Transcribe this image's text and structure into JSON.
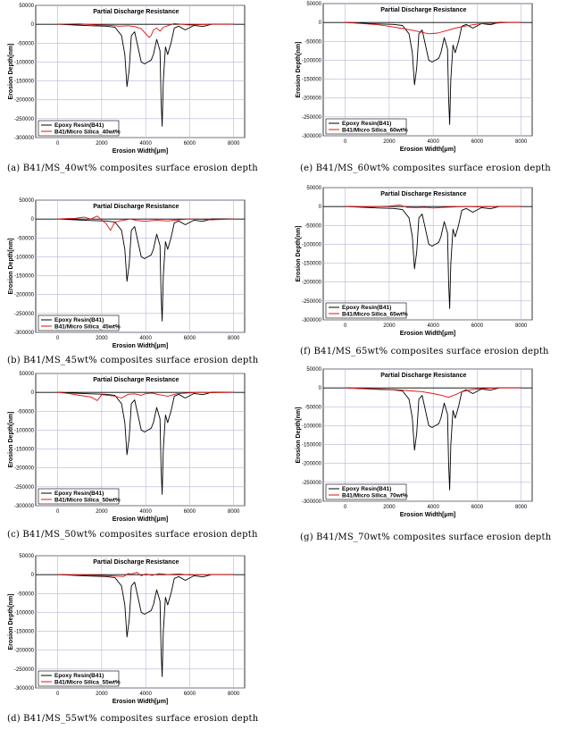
{
  "common": {
    "title": "Partial Discharge Resistance",
    "xlabel": "Erosion Width[μm]",
    "ylabel": "Erosion Depth[nm]",
    "xticks": [
      0,
      2000,
      4000,
      6000,
      8000
    ],
    "yticks": [
      50000,
      0,
      -50000,
      -100000,
      -150000,
      -200000,
      -250000,
      -300000
    ],
    "xlim": [
      -1000,
      8500
    ],
    "ylim": [
      -300000,
      50000
    ],
    "colors": {
      "epoxy": "#000000",
      "silica": "#e01010",
      "grid": "#b9b3d9",
      "zero": "#000000"
    },
    "legend_epoxy": "Epoxy Resin(B41)"
  },
  "chart_data": [
    {
      "id": "a",
      "type": "line",
      "legend_silica": "B41/Micro Silica_40wt%",
      "caption": "(a) B41/MS_40wt% composites surface erosion depth",
      "series": [
        {
          "name": "Epoxy Resin(B41)",
          "x": [
            0,
            800,
            1500,
            2200,
            2600,
            2900,
            3050,
            3150,
            3250,
            3350,
            3500,
            3650,
            3800,
            3950,
            4100,
            4250,
            4350,
            4500,
            4650,
            4700,
            4750,
            4800,
            4900,
            5000,
            5150,
            5300,
            5500,
            5800,
            6200,
            6600,
            7000,
            8000
          ],
          "y": [
            0,
            -2000,
            -4000,
            -5000,
            -8000,
            -30000,
            -80000,
            -165000,
            -120000,
            -30000,
            -20000,
            -60000,
            -100000,
            -105000,
            -100000,
            -95000,
            -80000,
            -40000,
            -70000,
            -200000,
            -270000,
            -150000,
            -60000,
            -80000,
            -50000,
            -10000,
            -5000,
            -15000,
            -3000,
            -6000,
            0,
            0
          ]
        },
        {
          "name": "B41/Micro Silica_40wt%",
          "x": [
            0,
            1000,
            1800,
            2400,
            2800,
            3200,
            3500,
            3800,
            4000,
            4150,
            4250,
            4350,
            4500,
            4650,
            4800,
            5000,
            5300,
            5600,
            6000,
            7000,
            8000
          ],
          "y": [
            0,
            1000,
            -2000,
            -3000,
            -5000,
            -4000,
            -6000,
            -12000,
            -25000,
            -35000,
            -30000,
            -15000,
            -10000,
            -18000,
            -8000,
            -4000,
            2000,
            0,
            -2000,
            0,
            0
          ]
        }
      ]
    },
    {
      "id": "b",
      "type": "line",
      "legend_silica": "B41/Micro Silica_45wt%",
      "caption": "(b) B41/MS_45wt% composites surface erosion depth",
      "series": [
        {
          "name": "Epoxy Resin(B41)",
          "x": [
            0,
            800,
            1500,
            2200,
            2600,
            2900,
            3050,
            3150,
            3250,
            3350,
            3500,
            3650,
            3800,
            3950,
            4100,
            4250,
            4350,
            4500,
            4650,
            4700,
            4750,
            4800,
            4900,
            5000,
            5150,
            5300,
            5500,
            5800,
            6200,
            6600,
            7000,
            8000
          ],
          "y": [
            0,
            -2000,
            -4000,
            -5000,
            -8000,
            -30000,
            -80000,
            -165000,
            -120000,
            -30000,
            -20000,
            -60000,
            -100000,
            -105000,
            -100000,
            -95000,
            -80000,
            -40000,
            -70000,
            -200000,
            -270000,
            -150000,
            -60000,
            -80000,
            -50000,
            -10000,
            -5000,
            -15000,
            -3000,
            -6000,
            0,
            0
          ]
        },
        {
          "name": "B41/Micro Silica_45wt%",
          "x": [
            0,
            800,
            1200,
            1500,
            1800,
            2000,
            2200,
            2400,
            2600,
            2800,
            3000,
            3300,
            3600,
            4000,
            4500,
            5000,
            5500,
            6000,
            7000,
            8000
          ],
          "y": [
            0,
            2000,
            5000,
            0,
            8000,
            -3000,
            -12000,
            -30000,
            -8000,
            -5000,
            -3000,
            0,
            -4000,
            -6000,
            -3000,
            -5000,
            -2000,
            0,
            -2000,
            0
          ]
        }
      ]
    },
    {
      "id": "c",
      "type": "line",
      "legend_silica": "B41/Micro Silica_50wt%",
      "caption": "(c) B41/MS_50wt% composites surface erosion depth",
      "series": [
        {
          "name": "Epoxy Resin(B41)",
          "x": [
            0,
            800,
            1500,
            2200,
            2600,
            2900,
            3050,
            3150,
            3250,
            3350,
            3500,
            3650,
            3800,
            3950,
            4100,
            4250,
            4350,
            4500,
            4650,
            4700,
            4750,
            4800,
            4900,
            5000,
            5150,
            5300,
            5500,
            5800,
            6200,
            6600,
            7000,
            8000
          ],
          "y": [
            0,
            -2000,
            -4000,
            -5000,
            -8000,
            -30000,
            -80000,
            -165000,
            -120000,
            -30000,
            -20000,
            -60000,
            -100000,
            -105000,
            -100000,
            -95000,
            -80000,
            -40000,
            -70000,
            -200000,
            -270000,
            -150000,
            -60000,
            -80000,
            -50000,
            -10000,
            -5000,
            -15000,
            -3000,
            -6000,
            0,
            0
          ]
        },
        {
          "name": "B41/Micro Silica_50wt%",
          "x": [
            0,
            500,
            1000,
            1500,
            1800,
            2000,
            2300,
            2600,
            2900,
            3200,
            3500,
            3800,
            4000,
            4300,
            4600,
            5000,
            5400,
            5800,
            6500,
            7000,
            8000
          ],
          "y": [
            0,
            -3000,
            -8000,
            -12000,
            -22000,
            -6000,
            -8000,
            -10000,
            -15000,
            -5000,
            -4000,
            -8000,
            -3000,
            -2000,
            -6000,
            -10000,
            -4000,
            -2000,
            0,
            -1000,
            0
          ]
        }
      ]
    },
    {
      "id": "d",
      "type": "line",
      "legend_silica": "B41/Micro Silica_55wt%",
      "caption": "(d) B41/MS_55wt% composites surface erosion depth",
      "series": [
        {
          "name": "Epoxy Resin(B41)",
          "x": [
            0,
            800,
            1500,
            2200,
            2600,
            2900,
            3050,
            3150,
            3250,
            3350,
            3500,
            3650,
            3800,
            3950,
            4100,
            4250,
            4350,
            4500,
            4650,
            4700,
            4750,
            4800,
            4900,
            5000,
            5150,
            5300,
            5500,
            5800,
            6200,
            6600,
            7000,
            8000
          ],
          "y": [
            0,
            -2000,
            -4000,
            -5000,
            -8000,
            -30000,
            -80000,
            -165000,
            -120000,
            -30000,
            -20000,
            -60000,
            -100000,
            -105000,
            -100000,
            -95000,
            -80000,
            -40000,
            -70000,
            -200000,
            -270000,
            -150000,
            -60000,
            -80000,
            -50000,
            -10000,
            -5000,
            -15000,
            -3000,
            -6000,
            0,
            0
          ]
        },
        {
          "name": "B41/Micro Silica_55wt%",
          "x": [
            0,
            1000,
            2000,
            2600,
            3000,
            3200,
            3400,
            3600,
            3800,
            4000,
            4300,
            4600,
            5000,
            5500,
            6000,
            7000,
            8000
          ],
          "y": [
            0,
            -1000,
            -2000,
            -4000,
            -5000,
            3000,
            2000,
            6000,
            -3000,
            2000,
            -2000,
            3000,
            0,
            2000,
            -1000,
            0,
            0
          ]
        }
      ]
    },
    {
      "id": "e",
      "type": "line",
      "legend_silica": "B41/Micro Silica_60wt%",
      "caption": "(e) B41/MS_60wt% composites surface erosion depth",
      "series": [
        {
          "name": "Epoxy Resin(B41)",
          "x": [
            0,
            800,
            1500,
            2200,
            2600,
            2900,
            3050,
            3150,
            3250,
            3350,
            3500,
            3650,
            3800,
            3950,
            4100,
            4250,
            4350,
            4500,
            4650,
            4700,
            4750,
            4800,
            4900,
            5000,
            5150,
            5300,
            5500,
            5800,
            6200,
            6600,
            7000,
            8000
          ],
          "y": [
            0,
            -2000,
            -4000,
            -5000,
            -8000,
            -30000,
            -80000,
            -165000,
            -120000,
            -30000,
            -20000,
            -60000,
            -100000,
            -105000,
            -100000,
            -95000,
            -80000,
            -40000,
            -70000,
            -200000,
            -270000,
            -150000,
            -60000,
            -80000,
            -50000,
            -10000,
            -5000,
            -15000,
            -3000,
            -6000,
            0,
            0
          ]
        },
        {
          "name": "B41/Micro Silica_60wt%",
          "x": [
            0,
            800,
            1500,
            2000,
            2500,
            3000,
            3400,
            3800,
            4200,
            4600,
            5000,
            5400,
            5800,
            6200,
            6800,
            7400,
            8000
          ],
          "y": [
            0,
            -3000,
            -6000,
            -10000,
            -15000,
            -20000,
            -25000,
            -30000,
            -28000,
            -22000,
            -15000,
            -10000,
            -6000,
            -3000,
            -2000,
            0,
            0
          ]
        }
      ]
    },
    {
      "id": "f",
      "type": "line",
      "legend_silica": "B41/Micro Silica_65wt%",
      "caption": "(f) B41/MS_65wt% composites surface erosion depth",
      "series": [
        {
          "name": "Epoxy Resin(B41)",
          "x": [
            0,
            800,
            1500,
            2200,
            2600,
            2900,
            3050,
            3150,
            3250,
            3350,
            3500,
            3650,
            3800,
            3950,
            4100,
            4250,
            4350,
            4500,
            4650,
            4700,
            4750,
            4800,
            4900,
            5000,
            5150,
            5300,
            5500,
            5800,
            6200,
            6600,
            7000,
            8000
          ],
          "y": [
            0,
            -2000,
            -4000,
            -5000,
            -8000,
            -30000,
            -80000,
            -165000,
            -120000,
            -30000,
            -20000,
            -60000,
            -100000,
            -105000,
            -100000,
            -95000,
            -80000,
            -40000,
            -70000,
            -200000,
            -270000,
            -150000,
            -60000,
            -80000,
            -50000,
            -10000,
            -5000,
            -15000,
            -3000,
            -6000,
            0,
            0
          ]
        },
        {
          "name": "B41/Micro Silica_65wt%",
          "x": [
            0,
            1000,
            2000,
            2500,
            2800,
            3200,
            3600,
            4000,
            4500,
            5000,
            5500,
            6000,
            7000,
            8000
          ],
          "y": [
            0,
            -1000,
            1000,
            4000,
            -2000,
            -3000,
            -2000,
            -4000,
            -2000,
            -1000,
            0,
            -1000,
            0,
            0
          ]
        }
      ]
    },
    {
      "id": "g",
      "type": "line",
      "legend_silica": "B41/Micro Silica_70wt%",
      "caption": "(g) B41/MS_70wt% composites surface erosion depth",
      "series": [
        {
          "name": "Epoxy Resin(B41)",
          "x": [
            0,
            800,
            1500,
            2200,
            2600,
            2900,
            3050,
            3150,
            3250,
            3350,
            3500,
            3650,
            3800,
            3950,
            4100,
            4250,
            4350,
            4500,
            4650,
            4700,
            4750,
            4800,
            4900,
            5000,
            5150,
            5300,
            5500,
            5800,
            6200,
            6600,
            7000,
            8000
          ],
          "y": [
            0,
            -2000,
            -4000,
            -5000,
            -8000,
            -30000,
            -80000,
            -165000,
            -120000,
            -30000,
            -20000,
            -60000,
            -100000,
            -105000,
            -100000,
            -95000,
            -80000,
            -40000,
            -70000,
            -200000,
            -270000,
            -150000,
            -60000,
            -80000,
            -50000,
            -10000,
            -5000,
            -15000,
            -3000,
            -6000,
            0,
            0
          ]
        },
        {
          "name": "B41/Micro Silica_70wt%",
          "x": [
            0,
            800,
            1600,
            2400,
            3000,
            3500,
            4000,
            4400,
            4700,
            5000,
            5300,
            5700,
            6200,
            7000,
            8000
          ],
          "y": [
            0,
            -2000,
            -3000,
            -5000,
            -8000,
            -10000,
            -15000,
            -20000,
            -25000,
            -18000,
            -10000,
            -5000,
            -2000,
            0,
            0
          ]
        }
      ]
    }
  ]
}
